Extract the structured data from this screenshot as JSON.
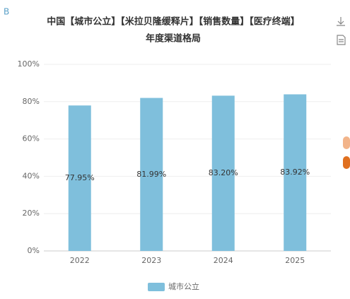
{
  "chart_data": {
    "type": "bar",
    "badge": "B",
    "title": "中国【城市公立】【米拉贝隆缓释片】【销售数量】【医疗终端】",
    "subtitle": "年度渠道格局",
    "categories": [
      "2022",
      "2023",
      "2024",
      "2025"
    ],
    "series": [
      {
        "name": "城市公立",
        "color": "#7fbfdc",
        "values": [
          77.95,
          81.99,
          83.2,
          83.92
        ],
        "value_labels": [
          "77.95%",
          "81.99%",
          "83.20%",
          "83.92%"
        ]
      }
    ],
    "ylim": [
      0,
      100
    ],
    "yticks": [
      {
        "value": 0,
        "label": "0%"
      },
      {
        "value": 20,
        "label": "20%"
      },
      {
        "value": 40,
        "label": "40%"
      },
      {
        "value": 60,
        "label": "60%"
      },
      {
        "value": 80,
        "label": "80%"
      },
      {
        "value": 100,
        "label": "100%"
      }
    ],
    "grid": true,
    "legend": "bottom"
  }
}
